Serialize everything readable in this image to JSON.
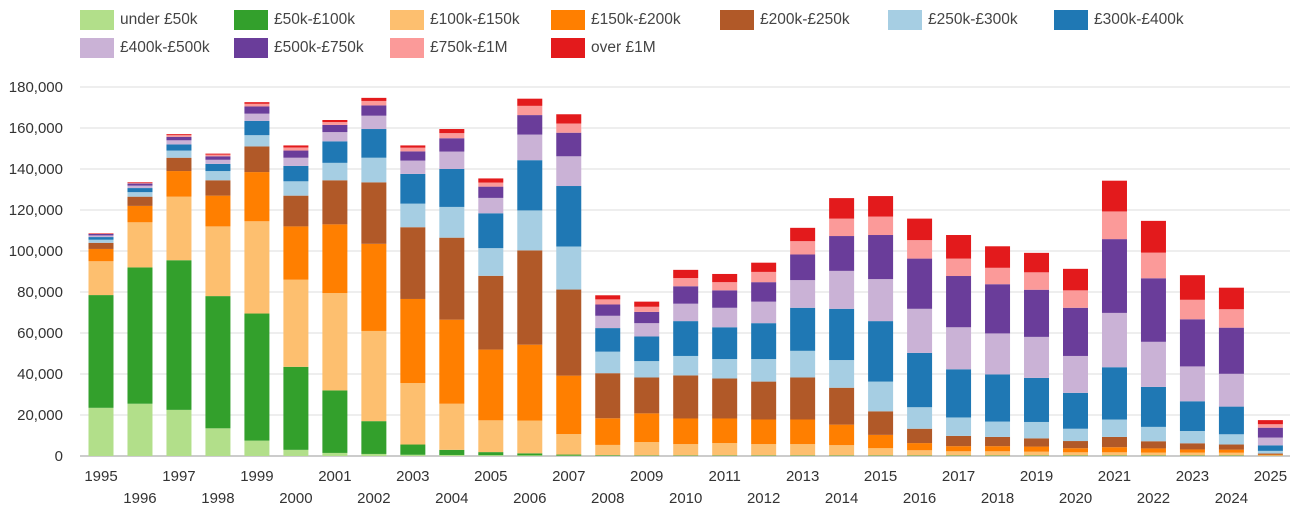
{
  "chart_data": {
    "type": "bar",
    "stacked": true,
    "title": "",
    "xlabel": "",
    "ylabel": "",
    "ylim": [
      0,
      180000
    ],
    "yticks": [
      0,
      20000,
      40000,
      60000,
      80000,
      100000,
      120000,
      140000,
      160000,
      180000
    ],
    "ytick_labels": [
      "0",
      "20,000",
      "40,000",
      "60,000",
      "80,000",
      "100,000",
      "120,000",
      "140,000",
      "160,000",
      "180,000"
    ],
    "grid": true,
    "legend_position": "top",
    "categories": [
      "1995",
      "1996",
      "1997",
      "1998",
      "1999",
      "2000",
      "2001",
      "2002",
      "2003",
      "2004",
      "2005",
      "2006",
      "2007",
      "2008",
      "2009",
      "2010",
      "2011",
      "2012",
      "2013",
      "2014",
      "2015",
      "2016",
      "2017",
      "2018",
      "2019",
      "2020",
      "2021",
      "2022",
      "2023",
      "2024",
      "2025"
    ],
    "series": [
      {
        "name": "under £50k",
        "color": "#b2df8a",
        "values": [
          23500,
          25500,
          22500,
          13500,
          7500,
          3000,
          1500,
          1000,
          600,
          500,
          400,
          300,
          200,
          100,
          100,
          100,
          100,
          100,
          100,
          100,
          100,
          100,
          100,
          100,
          100,
          100,
          100,
          100,
          100,
          100,
          0
        ]
      },
      {
        "name": "£50k-£100k",
        "color": "#33a02c",
        "values": [
          55000,
          66500,
          73000,
          64500,
          62000,
          40500,
          30500,
          16000,
          5000,
          2500,
          1500,
          1000,
          500,
          300,
          200,
          200,
          200,
          200,
          200,
          200,
          200,
          200,
          200,
          200,
          200,
          200,
          200,
          200,
          200,
          200,
          100
        ]
      },
      {
        "name": "£100k-£150k",
        "color": "#fdbf6f",
        "values": [
          16500,
          22000,
          31000,
          34000,
          45000,
          42500,
          47500,
          44000,
          30000,
          22500,
          15500,
          16000,
          10000,
          5000,
          6500,
          5500,
          6000,
          5500,
          5500,
          5000,
          3500,
          2500,
          2000,
          2000,
          1800,
          1500,
          1500,
          1400,
          1400,
          1300,
          300
        ]
      },
      {
        "name": "£150k-£200k",
        "color": "#ff7f00",
        "values": [
          6000,
          8000,
          12500,
          15000,
          24000,
          26000,
          33500,
          42500,
          41000,
          41000,
          34500,
          37000,
          28500,
          13000,
          14000,
          12500,
          12000,
          12000,
          12000,
          10000,
          6500,
          3500,
          2500,
          2500,
          2500,
          2000,
          2500,
          2000,
          1500,
          1500,
          300
        ]
      },
      {
        "name": "£200k-£250k",
        "color": "#b15928",
        "values": [
          3000,
          4500,
          6500,
          7500,
          12500,
          15000,
          21500,
          30000,
          35000,
          40000,
          36000,
          46000,
          42000,
          22000,
          17500,
          21000,
          19500,
          18500,
          20500,
          18000,
          11500,
          7000,
          5000,
          4500,
          4000,
          3500,
          5000,
          3500,
          3000,
          2500,
          500
        ]
      },
      {
        "name": "£250k-£300k",
        "color": "#a6cee3",
        "values": [
          1500,
          2200,
          3500,
          4500,
          5500,
          7000,
          8500,
          12000,
          11500,
          15000,
          13500,
          19500,
          21000,
          10500,
          8000,
          9500,
          9500,
          11000,
          13000,
          13500,
          14500,
          10500,
          9000,
          7500,
          8000,
          6000,
          8500,
          7000,
          6000,
          5000,
          1300
        ]
      },
      {
        "name": "£300k-£400k",
        "color": "#1f78b4",
        "values": [
          1300,
          2000,
          3000,
          3500,
          7000,
          7500,
          10500,
          14000,
          14500,
          18500,
          17000,
          24500,
          29500,
          11500,
          12000,
          17000,
          15500,
          17500,
          21000,
          25000,
          29500,
          26500,
          23500,
          23000,
          21500,
          17500,
          25500,
          19500,
          14500,
          13500,
          2700
        ]
      },
      {
        "name": "£400k-£500k",
        "color": "#cab2d6",
        "values": [
          800,
          1200,
          2000,
          2000,
          3500,
          4000,
          4500,
          6500,
          6500,
          8500,
          7500,
          12500,
          14500,
          6000,
          6500,
          8500,
          9500,
          10500,
          13500,
          18500,
          20500,
          21500,
          20500,
          20000,
          20000,
          18000,
          26500,
          22000,
          17000,
          16000,
          3800
        ]
      },
      {
        "name": "£500k-£750k",
        "color": "#6a3d9a",
        "values": [
          700,
          1000,
          1700,
          1700,
          3500,
          3500,
          3500,
          5000,
          4500,
          6500,
          5500,
          9500,
          11500,
          5500,
          5500,
          8500,
          8500,
          9500,
          12500,
          17000,
          21500,
          24500,
          25000,
          24000,
          23000,
          23500,
          36000,
          31000,
          23000,
          22500,
          4800
        ]
      },
      {
        "name": "£750k-£1M",
        "color": "#fb9a99",
        "values": [
          200,
          400,
          800,
          800,
          1300,
          1500,
          1400,
          2200,
          1800,
          2500,
          2000,
          4500,
          4500,
          2500,
          2500,
          4000,
          4000,
          5000,
          6500,
          8500,
          9000,
          9000,
          8500,
          8000,
          8500,
          8500,
          13500,
          12500,
          9500,
          9000,
          1700
        ]
      },
      {
        "name": "over £1M",
        "color": "#e31a1c",
        "values": [
          200,
          300,
          500,
          500,
          800,
          1000,
          1000,
          1500,
          1100,
          2000,
          2000,
          3500,
          4500,
          2000,
          2500,
          4000,
          4000,
          4500,
          6500,
          10000,
          10000,
          10500,
          11500,
          10500,
          9500,
          10500,
          15000,
          15500,
          12000,
          10500,
          2000
        ]
      }
    ]
  }
}
